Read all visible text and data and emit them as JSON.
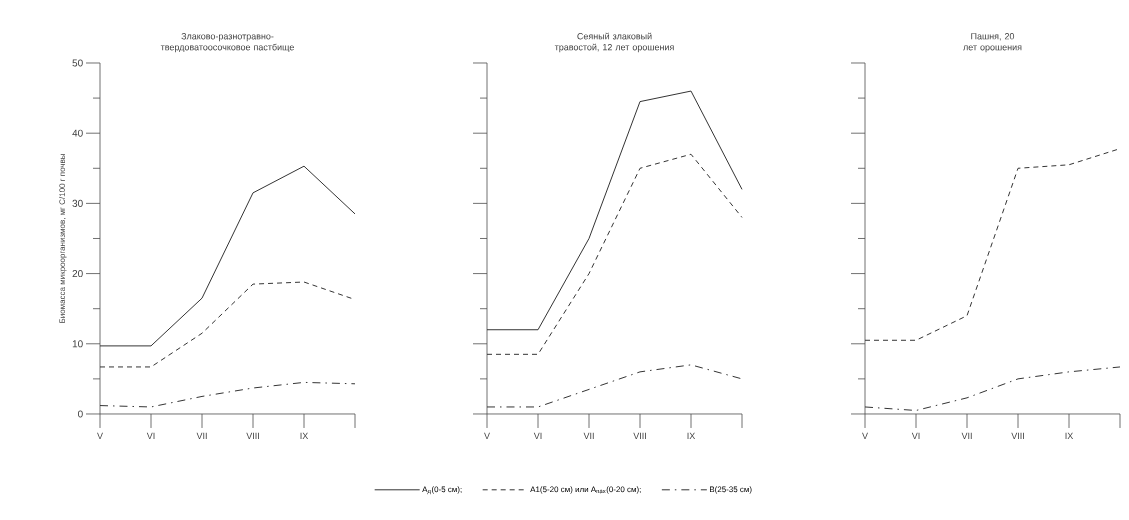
{
  "chart_data": [
    {
      "type": "line",
      "title": "Злаково-разнотравно-твердоватоосочковое пастбище",
      "ylabel": "Биомасса микроорганизмов, мг C/100 г почвы",
      "ylim": [
        0,
        50
      ],
      "categories": [
        "V",
        "VI",
        "VII",
        "VIII",
        "IX",
        null
      ],
      "yticks": [
        0,
        {
          "value": 5,
          "label": null
        },
        10,
        {
          "value": 15,
          "label": null
        },
        20,
        {
          "value": 25,
          "label": null
        },
        30,
        {
          "value": 35,
          "label": null
        },
        40,
        {
          "value": 45,
          "label": null
        },
        50
      ],
      "legend": "bottom",
      "series": [
        {
          "name": "A$_{д}$(0-5 см);",
          "color": "#333333",
          "line_style": "solid",
          "values": [
            9.7,
            9.7,
            16.5,
            31.5,
            35.3,
            28.5
          ]
        },
        {
          "name": "A1(5-20 см) или A$_{пах}$(0-20 см);",
          "color": "#333333",
          "line_style": "dashed",
          "values": [
            6.7,
            6.7,
            11.5,
            18.5,
            18.8,
            16.3
          ]
        },
        {
          "name": "B(25-35 см)",
          "color": "#333333",
          "line_style": "dashdot",
          "values": [
            1.2,
            1.0,
            2.5,
            3.7,
            4.5,
            4.3
          ]
        }
      ]
    },
    {
      "type": "line",
      "title": "Сеяный злаковый травостой, 12 лет орошения",
      "ylim": [
        0,
        50
      ],
      "tick_labels": "x",
      "categories": [
        "V",
        "VI",
        "VII",
        "VIII",
        "IX",
        null
      ],
      "yticks": [
        0,
        {
          "value": 5,
          "label": null
        },
        10,
        {
          "value": 15,
          "label": null
        },
        20,
        {
          "value": 25,
          "label": null
        },
        30,
        {
          "value": 35,
          "label": null
        },
        40,
        {
          "value": 45,
          "label": null
        },
        50
      ],
      "series": [
        {
          "color": "#333333",
          "line_style": "solid",
          "values": [
            12,
            12,
            25,
            44.5,
            46,
            32
          ]
        },
        {
          "color": "#333333",
          "line_style": "dashed",
          "values": [
            8.5,
            8.5,
            20,
            35,
            37,
            28
          ]
        },
        {
          "color": "#333333",
          "line_style": "dashdot",
          "values": [
            1,
            1,
            3.5,
            6,
            7,
            5
          ]
        }
      ]
    },
    {
      "type": "line",
      "title": "Пашня, 20 лет орошения",
      "ylim": [
        0,
        50
      ],
      "tick_labels": "x",
      "categories": [
        "V",
        "VI",
        "VII",
        "VIII",
        "IX",
        null
      ],
      "yticks": [
        0,
        {
          "value": 5,
          "label": null
        },
        10,
        {
          "value": 15,
          "label": null
        },
        20,
        {
          "value": 25,
          "label": null
        },
        30,
        {
          "value": 35,
          "label": null
        },
        40,
        {
          "value": 45,
          "label": null
        },
        50
      ],
      "series": [
        {
          "color": "#333333",
          "line_style": "dashed",
          "values": [
            10.5,
            10.5,
            14,
            35,
            35.5,
            37.8
          ]
        },
        {
          "color": "#333333",
          "line_style": "dashdot",
          "values": [
            1,
            0.5,
            2.3,
            5,
            6,
            6.7
          ]
        }
      ]
    }
  ]
}
